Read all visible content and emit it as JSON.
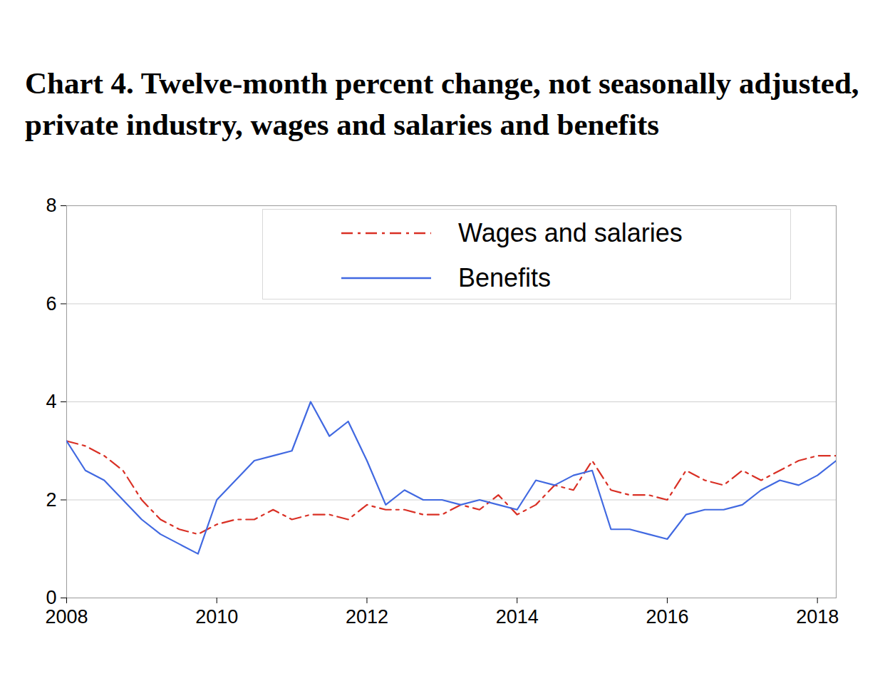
{
  "chart_data": {
    "type": "line",
    "title": "Chart 4. Twelve-month percent change, not seasonally adjusted, private industry, wages and salaries and benefits",
    "x": [
      2008,
      2008.25,
      2008.5,
      2008.75,
      2009,
      2009.25,
      2009.5,
      2009.75,
      2010,
      2010.25,
      2010.5,
      2010.75,
      2011,
      2011.25,
      2011.5,
      2011.75,
      2012,
      2012.25,
      2012.5,
      2012.75,
      2013,
      2013.25,
      2013.5,
      2013.75,
      2014,
      2014.25,
      2014.5,
      2014.75,
      2015,
      2015.25,
      2015.5,
      2015.75,
      2016,
      2016.25,
      2016.5,
      2016.75,
      2017,
      2017.25,
      2017.5,
      2017.75,
      2018,
      2018.25
    ],
    "series": [
      {
        "name": "Wages and salaries",
        "color": "#d93025",
        "line_style": "dashdot",
        "values": [
          3.2,
          3.1,
          2.9,
          2.6,
          2.0,
          1.6,
          1.4,
          1.3,
          1.5,
          1.6,
          1.6,
          1.8,
          1.6,
          1.7,
          1.7,
          1.6,
          1.9,
          1.8,
          1.8,
          1.7,
          1.7,
          1.9,
          1.8,
          2.1,
          1.7,
          1.9,
          2.3,
          2.2,
          2.8,
          2.2,
          2.1,
          2.1,
          2.0,
          2.6,
          2.4,
          2.3,
          2.6,
          2.4,
          2.6,
          2.8,
          2.9,
          2.9
        ]
      },
      {
        "name": "Benefits",
        "color": "#4169e1",
        "line_style": "solid",
        "values": [
          3.2,
          2.6,
          2.4,
          2.0,
          1.6,
          1.3,
          1.1,
          0.9,
          2.0,
          2.4,
          2.8,
          2.9,
          3.0,
          4.0,
          3.3,
          3.6,
          2.8,
          1.9,
          2.2,
          2.0,
          2.0,
          1.9,
          2.0,
          1.9,
          1.8,
          2.4,
          2.3,
          2.5,
          2.6,
          1.4,
          1.4,
          1.3,
          1.2,
          1.7,
          1.8,
          1.8,
          1.9,
          2.2,
          2.4,
          2.3,
          2.5,
          2.8
        ]
      }
    ],
    "xlim": [
      2008,
      2018.25
    ],
    "xticks": [
      2008,
      2010,
      2012,
      2014,
      2016,
      2018
    ],
    "ylim": [
      0,
      8
    ],
    "yticks": [
      0,
      2,
      4,
      6,
      8
    ],
    "grid": true,
    "legend": "top-right"
  }
}
